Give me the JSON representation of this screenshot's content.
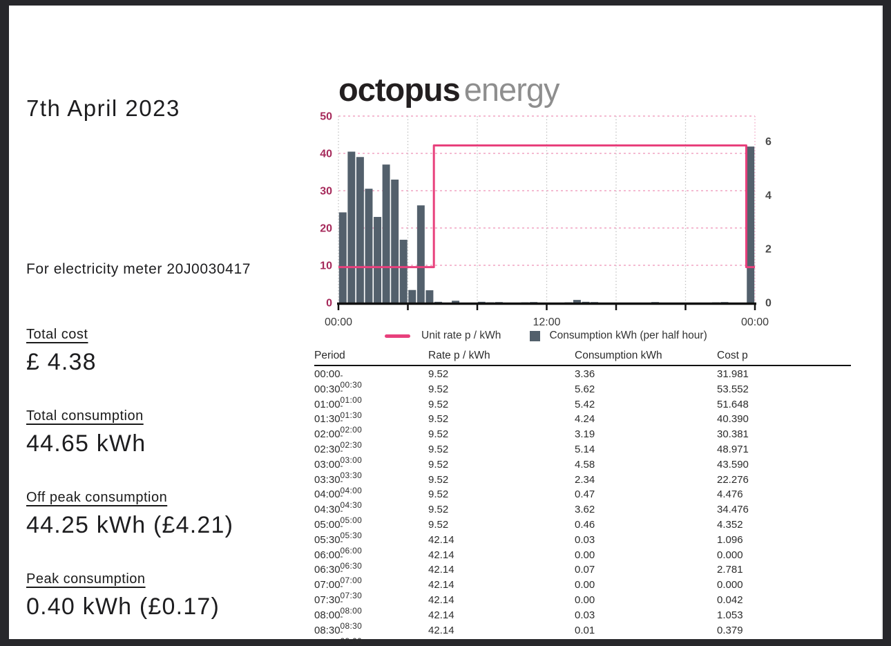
{
  "page": {
    "background": "#ffffff",
    "frame_color": "#27272b"
  },
  "report": {
    "date": "7th April 2023",
    "meter_line": "For electricity meter 20J0030417",
    "stats": [
      {
        "label": "Total cost",
        "value": "£ 4.38"
      },
      {
        "label": "Total consumption",
        "value": "44.65 kWh"
      },
      {
        "label": "Off peak consumption",
        "value": "44.25 kWh (£4.21)"
      },
      {
        "label": "Peak consumption",
        "value": "0.40 kWh (£0.17)"
      }
    ]
  },
  "logo": {
    "word1": "octopus",
    "word2": "energy"
  },
  "chart_data": {
    "type": "bar+step-line",
    "title": "",
    "x_axis": {
      "tick_hours": [
        0,
        4,
        8,
        12,
        16,
        20,
        24
      ],
      "labeled_hours": [
        0,
        12,
        24
      ],
      "labels": [
        "00:00",
        "12:00",
        "00:00"
      ]
    },
    "left_axis": {
      "label": "Unit rate p / kWh",
      "ticks": [
        0,
        10,
        20,
        30,
        40,
        50
      ],
      "range": [
        0,
        50
      ],
      "color": "#a62a5b"
    },
    "right_axis": {
      "label": "Consumption kWh",
      "ticks": [
        0,
        2,
        4,
        6
      ],
      "color": "#4a4a4a"
    },
    "layout": {
      "slots": 48,
      "kwh_to_left_units": 7.2,
      "grid": true,
      "legend_position": "bottom"
    },
    "colors": {
      "rate_line": "#e8407c",
      "bars": "#53606c",
      "h_grid": "#f0a3c2",
      "v_grid": "#c2c2c2",
      "axis": "#111111"
    },
    "unit_rate_p_per_kwh": [
      9.52,
      9.52,
      9.52,
      9.52,
      9.52,
      9.52,
      9.52,
      9.52,
      9.52,
      9.52,
      9.52,
      42.14,
      42.14,
      42.14,
      42.14,
      42.14,
      42.14,
      42.14,
      42.14,
      42.14,
      42.14,
      42.14,
      42.14,
      42.14,
      42.14,
      42.14,
      42.14,
      42.14,
      42.14,
      42.14,
      42.14,
      42.14,
      42.14,
      42.14,
      42.14,
      42.14,
      42.14,
      42.14,
      42.14,
      42.14,
      42.14,
      42.14,
      42.14,
      42.14,
      42.14,
      42.14,
      42.14,
      9.52
    ],
    "consumption_kwh": [
      3.36,
      5.62,
      5.42,
      4.24,
      3.19,
      5.14,
      4.58,
      2.34,
      0.47,
      3.62,
      0.46,
      0.03,
      0.0,
      0.07,
      0.0,
      0.0,
      0.03,
      0.01,
      0.02,
      0.0,
      0.0,
      0.01,
      0.02,
      0.0,
      0.0,
      0.0,
      0.01,
      0.1,
      0.03,
      0.02,
      0.0,
      0.0,
      0.0,
      0.0,
      0.0,
      0.0,
      0.02,
      0.0,
      0.0,
      0.0,
      0.0,
      0.0,
      0.0,
      0.01,
      0.02,
      0.0,
      0.0,
      5.81
    ],
    "legend": [
      {
        "label": "Unit rate p / kWh",
        "swatch": "line"
      },
      {
        "label": "Consumption kWh (per half hour)",
        "swatch": "square"
      }
    ]
  },
  "table": {
    "headers": [
      "Period",
      "Rate p / kWh",
      "Consumption kWh",
      "Cost p"
    ],
    "rows": [
      {
        "start": "00:00",
        "end": "00:30",
        "rate": "9.52",
        "consumption": "3.36",
        "cost": "31.981"
      },
      {
        "start": "00:30",
        "end": "01:00",
        "rate": "9.52",
        "consumption": "5.62",
        "cost": "53.552"
      },
      {
        "start": "01:00",
        "end": "01:30",
        "rate": "9.52",
        "consumption": "5.42",
        "cost": "51.648"
      },
      {
        "start": "01:30",
        "end": "02:00",
        "rate": "9.52",
        "consumption": "4.24",
        "cost": "40.390"
      },
      {
        "start": "02:00",
        "end": "02:30",
        "rate": "9.52",
        "consumption": "3.19",
        "cost": "30.381"
      },
      {
        "start": "02:30",
        "end": "03:00",
        "rate": "9.52",
        "consumption": "5.14",
        "cost": "48.971"
      },
      {
        "start": "03:00",
        "end": "03:30",
        "rate": "9.52",
        "consumption": "4.58",
        "cost": "43.590"
      },
      {
        "start": "03:30",
        "end": "04:00",
        "rate": "9.52",
        "consumption": "2.34",
        "cost": "22.276"
      },
      {
        "start": "04:00",
        "end": "04:30",
        "rate": "9.52",
        "consumption": "0.47",
        "cost": "4.476"
      },
      {
        "start": "04:30",
        "end": "05:00",
        "rate": "9.52",
        "consumption": "3.62",
        "cost": "34.476"
      },
      {
        "start": "05:00",
        "end": "05:30",
        "rate": "9.52",
        "consumption": "0.46",
        "cost": "4.352"
      },
      {
        "start": "05:30",
        "end": "06:00",
        "rate": "42.14",
        "consumption": "0.03",
        "cost": "1.096"
      },
      {
        "start": "06:00",
        "end": "06:30",
        "rate": "42.14",
        "consumption": "0.00",
        "cost": "0.000"
      },
      {
        "start": "06:30",
        "end": "07:00",
        "rate": "42.14",
        "consumption": "0.07",
        "cost": "2.781"
      },
      {
        "start": "07:00",
        "end": "07:30",
        "rate": "42.14",
        "consumption": "0.00",
        "cost": "0.000"
      },
      {
        "start": "07:30",
        "end": "08:00",
        "rate": "42.14",
        "consumption": "0.00",
        "cost": "0.042"
      },
      {
        "start": "08:00",
        "end": "08:30",
        "rate": "42.14",
        "consumption": "0.03",
        "cost": "1.053"
      },
      {
        "start": "08:30",
        "end": "09:00",
        "rate": "42.14",
        "consumption": "0.01",
        "cost": "0.379"
      }
    ]
  }
}
